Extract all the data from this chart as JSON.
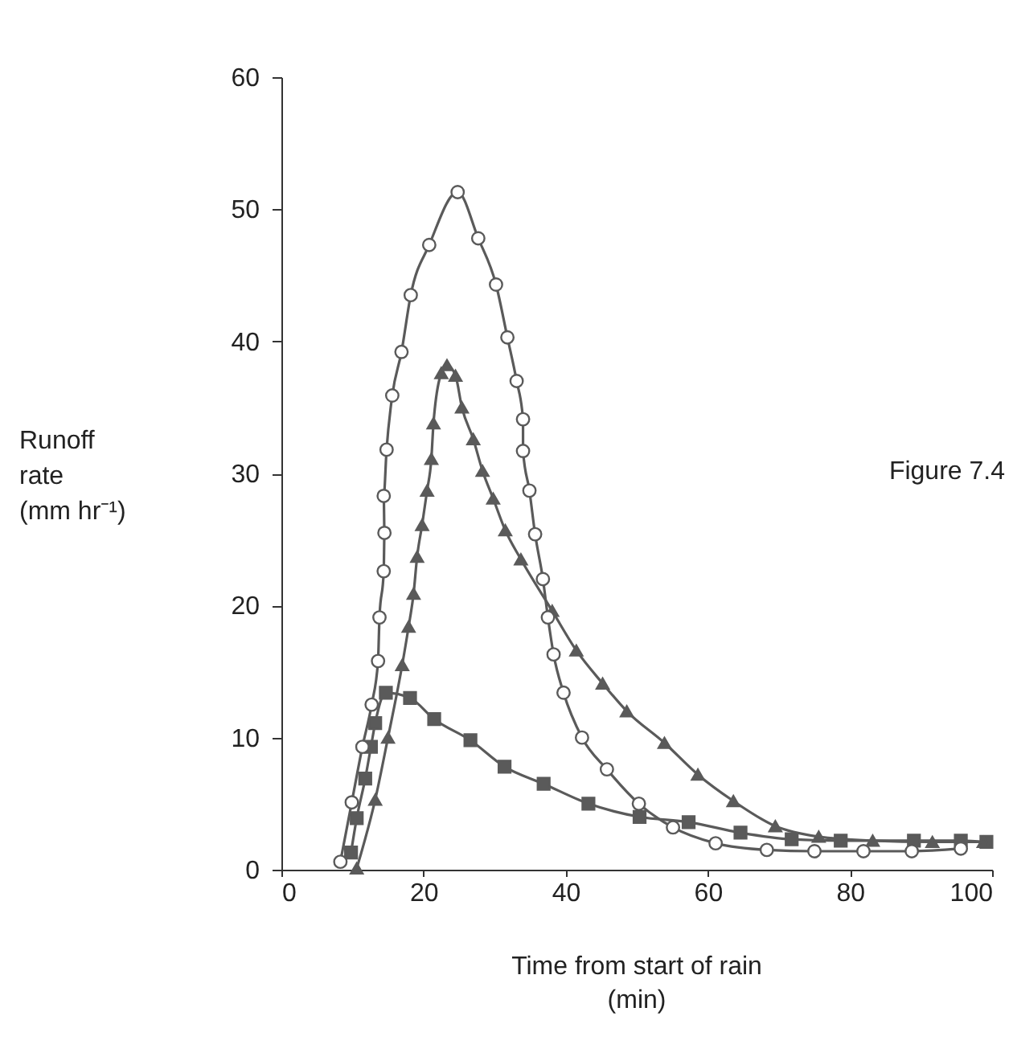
{
  "chart_data": {
    "type": "line",
    "xlabel": "Time from start of rain\n(min)",
    "ylabel": "Runoff\nrate\n(mm hr⁻¹)",
    "annotations": [
      "Figure 7.4"
    ],
    "xlim": [
      0,
      100
    ],
    "ylim": [
      0,
      60
    ],
    "xticks": [
      0,
      20,
      40,
      60,
      80,
      100
    ],
    "yticks": [
      0,
      10,
      20,
      30,
      40,
      50,
      60
    ],
    "grid": false,
    "line_style": "solid",
    "series": [
      {
        "color": "#5a5a5a",
        "marker": "circle",
        "x": [
          8.3,
          9.9,
          11.4,
          12.7,
          13.6,
          13.8,
          14.4,
          14.5,
          14.4,
          14.8,
          15.6,
          16.9,
          18.2,
          20.8,
          24.8,
          27.7,
          30.2,
          31.8,
          33.1,
          34.0,
          34.0,
          34.9,
          35.7,
          36.8,
          37.5,
          38.3,
          39.7,
          42.3,
          45.8,
          50.3,
          55.1,
          61.1,
          68.3,
          75.0,
          81.9,
          88.7,
          95.6
        ],
        "values": [
          0.6,
          5.1,
          9.3,
          12.5,
          15.8,
          19.1,
          22.6,
          25.5,
          28.3,
          31.8,
          35.9,
          39.2,
          43.5,
          47.3,
          51.3,
          47.8,
          44.3,
          40.3,
          37.0,
          34.1,
          31.7,
          28.7,
          25.4,
          22.0,
          19.1,
          16.3,
          13.4,
          10.0,
          7.6,
          5.0,
          3.2,
          2.0,
          1.5,
          1.4,
          1.4,
          1.4,
          1.6
        ]
      },
      {
        "color": "#5a5a5a",
        "marker": "triangle",
        "x": [
          10.6,
          13.2,
          15.0,
          17.0,
          17.9,
          18.6,
          19.1,
          19.8,
          20.5,
          21.1,
          21.4,
          22.5,
          23.3,
          24.5,
          25.4,
          27.0,
          28.3,
          29.8,
          31.5,
          33.7,
          38.1,
          41.5,
          45.2,
          48.6,
          53.9,
          58.6,
          63.6,
          69.5,
          75.6,
          83.2,
          91.6,
          98.8
        ],
        "values": [
          0.1,
          5.3,
          10.0,
          15.5,
          18.4,
          20.9,
          23.7,
          26.1,
          28.7,
          31.1,
          33.8,
          37.6,
          38.2,
          37.4,
          35.0,
          32.6,
          30.2,
          28.1,
          25.7,
          23.5,
          19.6,
          16.6,
          14.1,
          12.0,
          9.6,
          7.2,
          5.2,
          3.3,
          2.5,
          2.2,
          2.1,
          2.1
        ]
      },
      {
        "color": "#5a5a5a",
        "marker": "square",
        "x": [
          9.8,
          10.6,
          11.8,
          12.6,
          13.2,
          14.7,
          18.1,
          21.5,
          26.6,
          31.4,
          36.9,
          43.2,
          50.4,
          57.3,
          64.6,
          71.8,
          78.7,
          89.0,
          95.6,
          99.2
        ],
        "values": [
          1.3,
          3.9,
          6.9,
          9.3,
          11.1,
          13.4,
          13.0,
          11.4,
          9.8,
          7.8,
          6.5,
          5.0,
          4.0,
          3.6,
          2.8,
          2.3,
          2.2,
          2.2,
          2.2,
          2.1
        ]
      }
    ]
  }
}
